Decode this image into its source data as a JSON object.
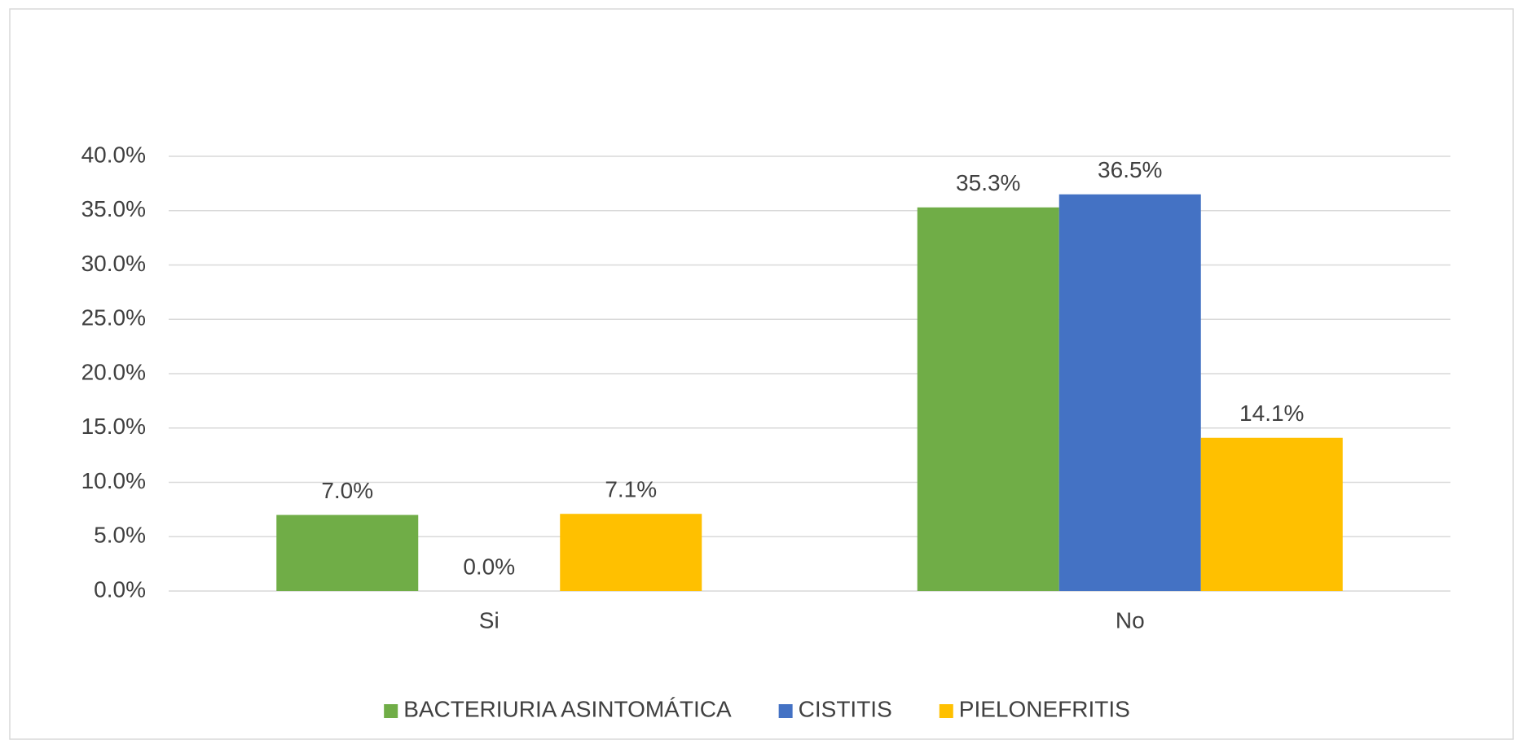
{
  "chart_data": {
    "type": "bar",
    "categories": [
      "Si",
      "No"
    ],
    "series": [
      {
        "name": "BACTERIURIA ASINTOMÁTICA",
        "color": "#70ad47",
        "values": [
          7.0,
          35.3
        ],
        "value_labels": [
          "7.0%",
          "35.3%"
        ]
      },
      {
        "name": "CISTITIS",
        "color": "#4472c4",
        "values": [
          0.0,
          36.5
        ],
        "value_labels": [
          "0.0%",
          "36.5%"
        ]
      },
      {
        "name": "PIELONEFRITIS",
        "color": "#ffc000",
        "values": [
          7.1,
          14.1
        ],
        "value_labels": [
          "7.1%",
          "14.1%"
        ]
      }
    ],
    "ylim": [
      0,
      40
    ],
    "yticks": [
      {
        "value": 0,
        "label": "0.0%"
      },
      {
        "value": 5,
        "label": "5.0%"
      },
      {
        "value": 10,
        "label": "10.0%"
      },
      {
        "value": 15,
        "label": "15.0%"
      },
      {
        "value": 20,
        "label": "20.0%"
      },
      {
        "value": 25,
        "label": "25.0%"
      },
      {
        "value": 30,
        "label": "30.0%"
      },
      {
        "value": 35,
        "label": "35.0%"
      },
      {
        "value": 40,
        "label": "40.0%"
      }
    ],
    "grid": true,
    "legend": "bottom"
  }
}
